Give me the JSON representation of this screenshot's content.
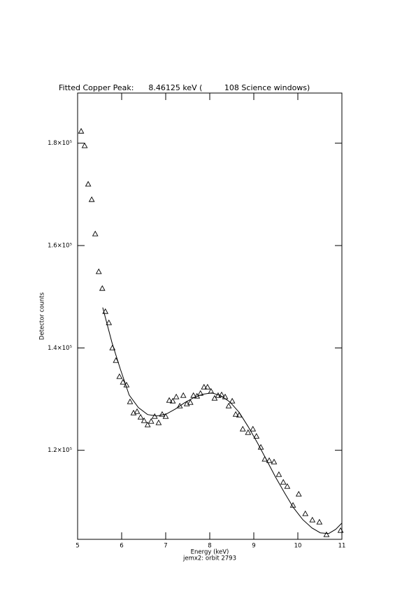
{
  "chart_data": {
    "type": "scatter",
    "title": "Fitted Copper Peak:      8.46125 keV (         108 Science windows)",
    "x_label": "Energy (keV)",
    "x_sublabel": "jemx2: orbit 2793",
    "y_label": "Detector counts",
    "xlim": [
      5,
      11
    ],
    "ylim": [
      102600,
      189800
    ],
    "xticks": [
      5,
      6,
      7,
      8,
      9,
      10,
      11
    ],
    "yticks": [
      {
        "value": 120000,
        "label": "1.2×10⁵"
      },
      {
        "value": 140000,
        "label": "1.4×10⁵"
      },
      {
        "value": 160000,
        "label": "1.6×10⁵"
      },
      {
        "value": 180000,
        "label": "1.8×10⁵"
      }
    ],
    "series": [
      {
        "marker": "triangle",
        "color": "#000000",
        "x": [
          5.08,
          5.16,
          5.24,
          5.32,
          5.4,
          5.48,
          5.56,
          5.63,
          5.71,
          5.79,
          5.87,
          5.95,
          6.03,
          6.11,
          6.19,
          6.27,
          6.35,
          6.43,
          6.51,
          6.59,
          6.67,
          6.75,
          6.84,
          6.92,
          7.0,
          7.08,
          7.16,
          7.24,
          7.32,
          7.4,
          7.48,
          7.56,
          7.63,
          7.71,
          7.79,
          7.87,
          7.95,
          8.03,
          8.11,
          8.19,
          8.27,
          8.35,
          8.43,
          8.51,
          8.59,
          8.67,
          8.75,
          8.87,
          8.98,
          9.06,
          9.16,
          9.25,
          9.35,
          9.46,
          9.57,
          9.67,
          9.76,
          9.89,
          10.02,
          10.17,
          10.33,
          10.49,
          10.65,
          10.97
        ],
        "values": [
          182300,
          179460,
          171950,
          168940,
          162240,
          154860,
          151580,
          147070,
          144880,
          139960,
          137500,
          134350,
          133260,
          132710,
          129430,
          127250,
          127520,
          126430,
          125740,
          124920,
          125610,
          126560,
          125330,
          126970,
          126560,
          129710,
          129570,
          130390,
          128610,
          130660,
          129020,
          129300,
          130660,
          130530,
          131070,
          132300,
          132300,
          131480,
          130120,
          130660,
          130800,
          130390,
          128610,
          129570,
          126970,
          126830,
          124100,
          123420,
          124100,
          122700,
          120550,
          118220,
          117950,
          117680,
          115220,
          113710,
          112890,
          109200,
          111390,
          107560,
          106330,
          105920,
          103460,
          104280
        ]
      },
      {
        "line": true,
        "color": "#000000",
        "x": [
          5.57,
          5.78,
          5.97,
          6.17,
          6.38,
          6.59,
          6.81,
          7.02,
          7.22,
          7.43,
          7.63,
          7.84,
          8.05,
          8.25,
          8.46,
          8.67,
          8.87,
          9.08,
          9.29,
          9.49,
          9.7,
          9.9,
          10.11,
          10.32,
          10.51,
          10.7,
          10.86,
          11.0
        ],
        "values": [
          147890,
          141050,
          135860,
          130800,
          128340,
          126970,
          126700,
          127110,
          128070,
          129300,
          130250,
          130940,
          131210,
          130660,
          129430,
          127380,
          124650,
          121500,
          118090,
          114810,
          111660,
          108790,
          106470,
          104830,
          103870,
          103730,
          104550,
          105780
        ]
      }
    ]
  }
}
